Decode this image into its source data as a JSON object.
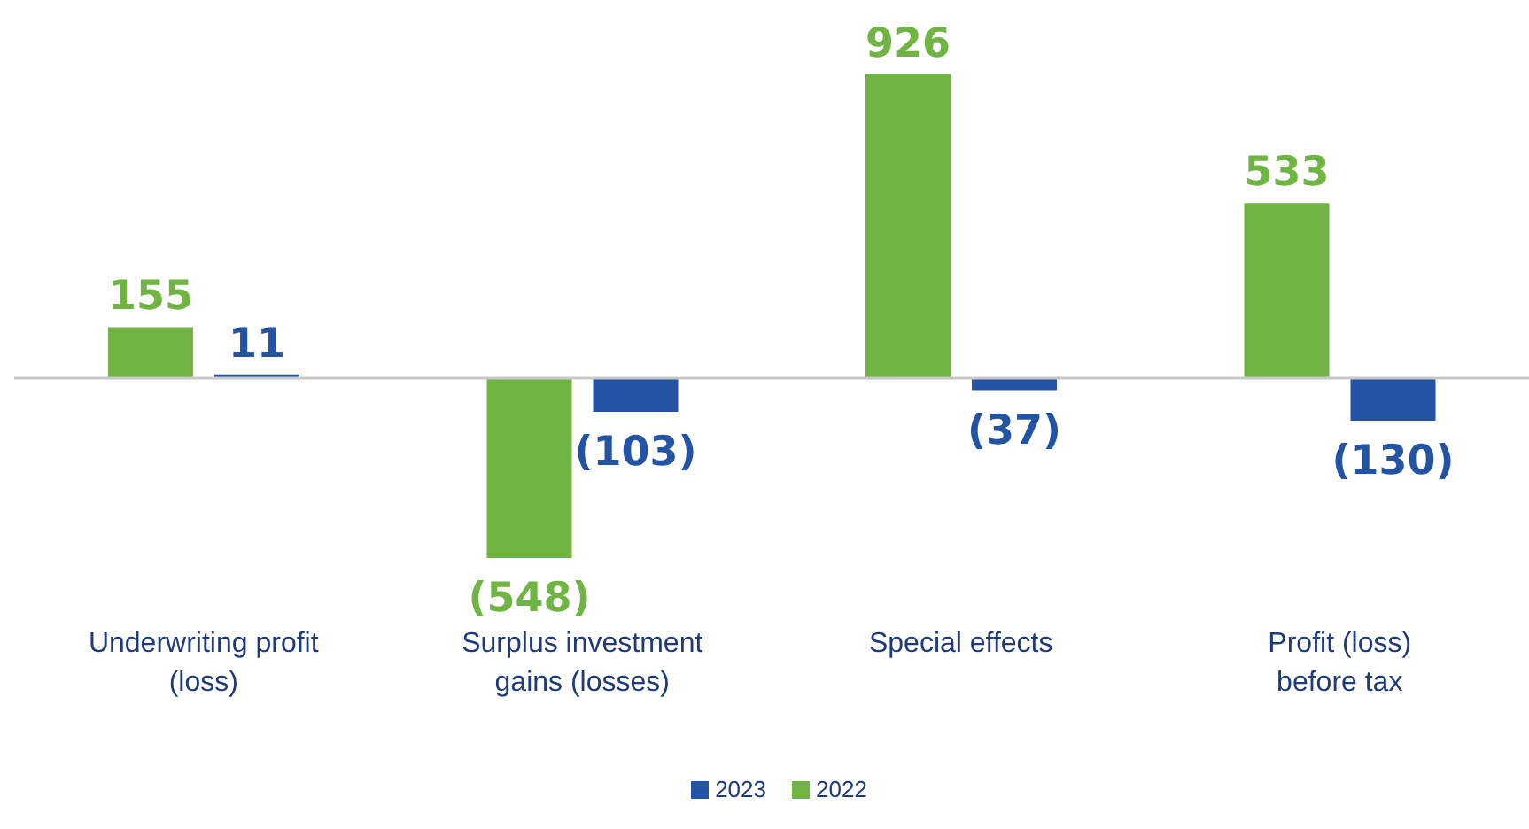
{
  "chart_data": {
    "type": "bar",
    "categories": [
      "Underwriting profit (loss)",
      "Surplus investment gains (losses)",
      "Special effects",
      "Profit (loss) before tax"
    ],
    "series": [
      {
        "name": "2022",
        "color": "#70b443",
        "values": [
          155,
          -548,
          926,
          533
        ],
        "value_labels": [
          "155",
          "(548)",
          "926",
          "533"
        ]
      },
      {
        "name": "2023",
        "color": "#2453a4",
        "values": [
          11,
          -103,
          -37,
          -130
        ],
        "value_labels": [
          "11",
          "(103)",
          "(37)",
          "(130)"
        ]
      }
    ],
    "legend": "bottom",
    "grid": false
  }
}
